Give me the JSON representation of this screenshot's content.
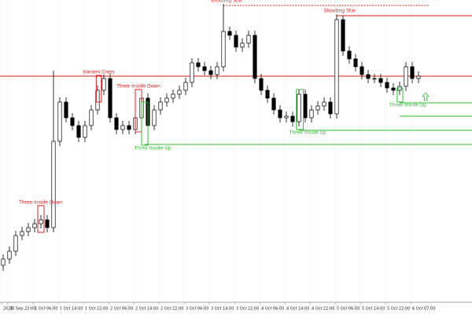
{
  "chart_data": {
    "type": "candlestick",
    "open": [
      62,
      70,
      80,
      100,
      105,
      110,
      115,
      120,
      110,
      220,
      270,
      250,
      240,
      225,
      240,
      260,
      285,
      300,
      250,
      235,
      240,
      235,
      250,
      275,
      240,
      260,
      270,
      275,
      280,
      285,
      295,
      320,
      315,
      310,
      305,
      315,
      360,
      355,
      340,
      345,
      355,
      300,
      285,
      275,
      260,
      250,
      252,
      245,
      280,
      250,
      260,
      265,
      270,
      255,
      375,
      335,
      325,
      315,
      305,
      300,
      300,
      295,
      288,
      285,
      290,
      315,
      300
    ],
    "high": [
      76,
      86,
      106,
      111,
      116,
      121,
      126,
      126,
      310,
      276,
      276,
      256,
      246,
      246,
      266,
      291,
      305,
      306,
      256,
      246,
      246,
      256,
      281,
      281,
      266,
      276,
      281,
      286,
      291,
      301,
      326,
      326,
      321,
      316,
      321,
      395,
      366,
      361,
      351,
      361,
      361,
      306,
      291,
      281,
      266,
      258,
      258,
      286,
      286,
      266,
      271,
      276,
      276,
      382,
      380,
      341,
      331,
      321,
      311,
      306,
      306,
      301,
      294,
      296,
      321,
      321,
      309
    ],
    "low": [
      55,
      64,
      74,
      94,
      99,
      104,
      109,
      104,
      104,
      214,
      244,
      234,
      219,
      219,
      234,
      254,
      279,
      244,
      229,
      229,
      229,
      229,
      244,
      234,
      234,
      254,
      264,
      269,
      274,
      279,
      289,
      309,
      304,
      299,
      299,
      309,
      349,
      334,
      334,
      339,
      294,
      279,
      269,
      254,
      244,
      244,
      239,
      239,
      244,
      244,
      254,
      259,
      249,
      249,
      329,
      319,
      309,
      299,
      294,
      294,
      289,
      282,
      279,
      279,
      284,
      294,
      294
    ],
    "close": [
      70,
      80,
      100,
      105,
      110,
      115,
      120,
      110,
      220,
      270,
      250,
      240,
      225,
      240,
      260,
      285,
      300,
      250,
      235,
      240,
      235,
      250,
      275,
      240,
      260,
      270,
      275,
      280,
      285,
      295,
      320,
      315,
      310,
      305,
      315,
      360,
      355,
      340,
      345,
      355,
      300,
      285,
      275,
      260,
      250,
      252,
      245,
      280,
      250,
      260,
      265,
      270,
      255,
      375,
      335,
      325,
      315,
      305,
      300,
      300,
      295,
      288,
      285,
      290,
      315,
      300,
      303
    ],
    "xlim": [
      -0.5,
      74.5
    ],
    "ylim": [
      15,
      400
    ],
    "xticks": [
      {
        "value": -0.25,
        "label": "2025"
      },
      {
        "value": 0.75,
        "label": "30 Sep 22:00"
      },
      {
        "value": 4.75,
        "label": "1 Oct 06:00"
      },
      {
        "value": 8.75,
        "label": "1 Oct 14:00"
      },
      {
        "value": 12.75,
        "label": "1 Oct 22:00"
      },
      {
        "value": 16.75,
        "label": "2 Oct 06:00"
      },
      {
        "value": 20.75,
        "label": "2 Oct 14:00"
      },
      {
        "value": 24.75,
        "label": "2 Oct 22:00"
      },
      {
        "value": 28.75,
        "label": "3 Oct 06:00"
      },
      {
        "value": 32.75,
        "label": "3 Oct 14:00"
      },
      {
        "value": 36.75,
        "label": "3 Oct 22:00"
      },
      {
        "value": 40.75,
        "label": "4 Oct 06:00"
      },
      {
        "value": 44.75,
        "label": "4 Oct 14:00"
      },
      {
        "value": 48.75,
        "label": "4 Oct 22:00"
      },
      {
        "value": 52.75,
        "label": "5 Oct 06:00"
      },
      {
        "value": 56.75,
        "label": "5 Oct 14:00"
      },
      {
        "value": 60.75,
        "label": "5 Oct 22:00"
      },
      {
        "value": 64.75,
        "label": "6 Oct 07:00"
      }
    ],
    "grid": true,
    "patterns": [
      {
        "label": "Three Inside Down",
        "color": "#e02020",
        "start": 5.5,
        "end": 6.5,
        "low": 104,
        "high": 138
      },
      {
        "label": "Harami Cross",
        "color": "#e02020",
        "start": 14.8,
        "end": 15.6,
        "low": 270,
        "high": 304
      },
      {
        "label": "Three Inside Down",
        "color": "#e02020",
        "start": 21,
        "end": 22,
        "low": 232,
        "high": 286
      },
      {
        "label": "Three Inside Up",
        "color": "#33bb33",
        "start": 22,
        "end": 23,
        "low": 215,
        "high": 270
      },
      {
        "label": "Three Inside Up",
        "color": "#33bb33",
        "start": 46.6,
        "end": 47.7,
        "low": 235,
        "high": 286
      },
      {
        "label": "Three Inside Up",
        "color": "#33bb33",
        "start": 62.6,
        "end": 63.5,
        "low": 270,
        "high": 288
      },
      {
        "label": "Shooting Star",
        "color": "#e02020",
        "candle": 35
      },
      {
        "label": "Shooting Star",
        "color": "#e02020",
        "candle": 53
      }
    ],
    "levels": [
      {
        "value": 303,
        "start": -0.5,
        "color": "#d02020"
      },
      {
        "value": 393,
        "start": 35,
        "end": 67.6,
        "color": "#e02020",
        "dashed": true
      },
      {
        "value": 380,
        "start": 53,
        "color": "#d02020"
      },
      {
        "value": 269,
        "start": 63,
        "color": "#33bb33"
      },
      {
        "value": 252,
        "start": 63,
        "color": "#33bb33"
      },
      {
        "value": 234,
        "start": 47,
        "color": "#33bb33"
      },
      {
        "value": 216,
        "start": 22.5,
        "color": "#33bb33"
      }
    ]
  }
}
